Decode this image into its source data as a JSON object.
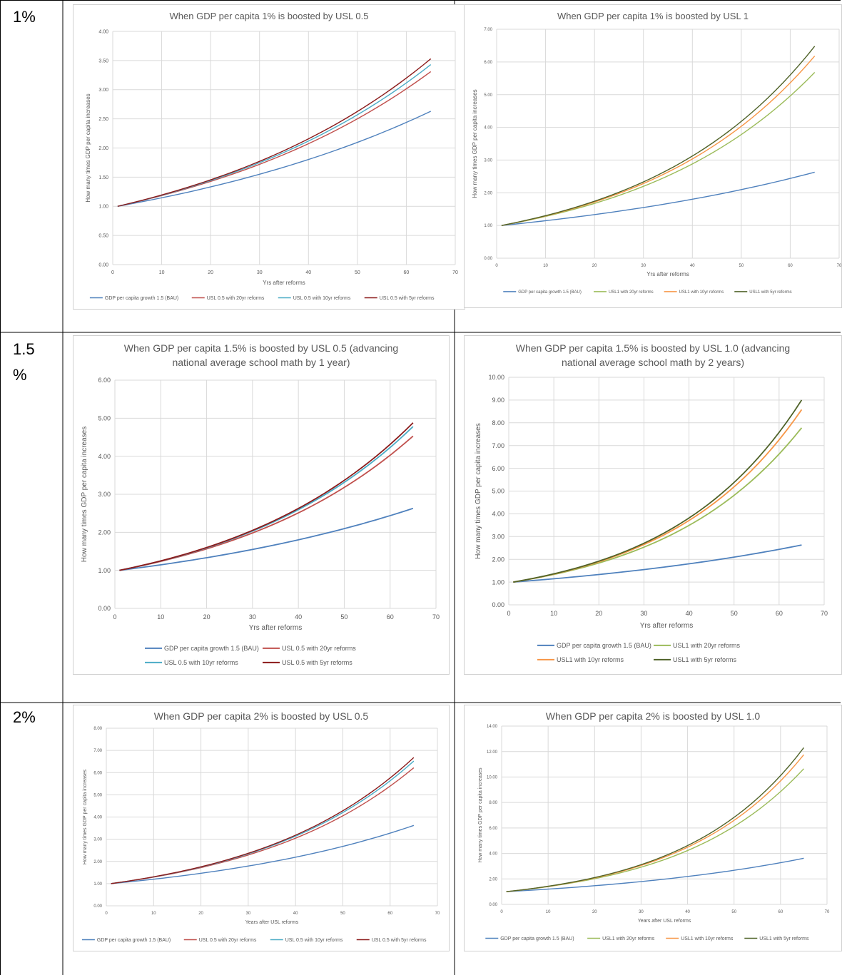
{
  "row_labels": [
    "1%",
    "1.5",
    "%",
    "2%"
  ],
  "colors": {
    "bau": "#4f81bd",
    "usl05_20": "#c0504d",
    "usl05_10": "#4bacc6",
    "usl05_5": "#8b1a1a",
    "usl1_20": "#9bbb59",
    "usl1_10": "#f79646",
    "usl1_5": "#4f6228"
  },
  "chart_data": [
    {
      "type": "line",
      "title": [
        "When GDP per capita 1% is boosted by USL 0.5"
      ],
      "xlabel": "Yrs after reforms",
      "ylabel": "How many times GDP per capita increases",
      "xlim": [
        0,
        70
      ],
      "ylim": [
        0,
        4
      ],
      "xticks": [
        "0",
        "10",
        "20",
        "30",
        "40",
        "50",
        "60",
        "70"
      ],
      "yticks": [
        "0.00",
        "0.50",
        "1.00",
        "1.50",
        "2.00",
        "2.50",
        "3.00",
        "3.50",
        "4.00"
      ],
      "legend_position": "bottom",
      "x": [
        1,
        65
      ],
      "series": [
        {
          "name": "GDP per capita growth 1.5 (BAU)",
          "values": [
            1.0,
            2.63
          ]
        },
        {
          "name": "USL 0.5 with 20yr reforms",
          "values": [
            1.0,
            3.31
          ]
        },
        {
          "name": "USL 0.5 with 10yr reforms",
          "values": [
            1.0,
            3.43
          ]
        },
        {
          "name": "USL 0.5 with 5yr reforms",
          "values": [
            1.0,
            3.53
          ]
        }
      ]
    },
    {
      "type": "line",
      "title": [
        "When GDP per capita 1% is boosted by USL 1"
      ],
      "xlabel": "Yrs after reforms",
      "ylabel": "How many times GDP per capita increases",
      "xlim": [
        0,
        70
      ],
      "ylim": [
        0,
        7
      ],
      "xticks": [
        "0",
        "10",
        "20",
        "30",
        "40",
        "50",
        "60",
        "70"
      ],
      "yticks": [
        "0.00",
        "1.00",
        "2.00",
        "3.00",
        "4.00",
        "5.00",
        "6.00",
        "7.00"
      ],
      "legend_position": "bottom",
      "x": [
        1,
        65
      ],
      "series": [
        {
          "name": "GDP per capita growth 1.5 (BAU)",
          "values": [
            1.0,
            2.63
          ]
        },
        {
          "name": "USL1 with 20yr reforms",
          "values": [
            1.0,
            5.68
          ]
        },
        {
          "name": "USL1 with 10yr reforms",
          "values": [
            1.0,
            6.18
          ]
        },
        {
          "name": "USL1 with 5yr reforms",
          "values": [
            1.0,
            6.48
          ]
        }
      ]
    },
    {
      "type": "line",
      "title": [
        "When GDP per capita 1.5% is boosted by USL 0.5 (advancing",
        "national average school math by 1 year)"
      ],
      "xlabel": "Yrs after  reforms",
      "ylabel": "How many times GDP per capita increases",
      "xlim": [
        0,
        70
      ],
      "ylim": [
        0,
        6
      ],
      "xticks": [
        "0",
        "10",
        "20",
        "30",
        "40",
        "50",
        "60",
        "70"
      ],
      "yticks": [
        "0.00",
        "1.00",
        "2.00",
        "3.00",
        "4.00",
        "5.00",
        "6.00"
      ],
      "legend_position": "bottom",
      "x": [
        1,
        65
      ],
      "series": [
        {
          "name": "GDP per capita growth 1.5 (BAU)",
          "values": [
            1.0,
            2.63
          ]
        },
        {
          "name": "USL 0.5 with 20yr reforms",
          "values": [
            1.0,
            4.53
          ]
        },
        {
          "name": "USL 0.5 with 10yr reforms",
          "values": [
            1.0,
            4.78
          ]
        },
        {
          "name": "USL 0.5 with 5yr reforms",
          "values": [
            1.0,
            4.88
          ]
        }
      ]
    },
    {
      "type": "line",
      "title": [
        "When GDP per capita 1.5% is boosted by USL 1.0 (advancing",
        "national average school math by 2 years)"
      ],
      "xlabel": "Yrs after  reforms",
      "ylabel": "How many times GDP per capita increases",
      "xlim": [
        0,
        70
      ],
      "ylim": [
        0,
        10
      ],
      "xticks": [
        "0",
        "10",
        "20",
        "30",
        "40",
        "50",
        "60",
        "70"
      ],
      "yticks": [
        "0.00",
        "1.00",
        "2.00",
        "3.00",
        "4.00",
        "5.00",
        "6.00",
        "7.00",
        "8.00",
        "9.00",
        "10.00"
      ],
      "legend_position": "bottom",
      "x": [
        1,
        65
      ],
      "series": [
        {
          "name": "GDP per capita growth 1.5 (BAU)",
          "values": [
            1.0,
            2.63
          ]
        },
        {
          "name": "USL1 with 20yr reforms",
          "values": [
            1.0,
            7.78
          ]
        },
        {
          "name": "USL1 with 10yr reforms",
          "values": [
            1.0,
            8.58
          ]
        },
        {
          "name": "USL1 with 5yr reforms",
          "values": [
            1.0,
            9.0
          ]
        }
      ]
    },
    {
      "type": "line",
      "title": [
        "When GDP per capita 2% is boosted by USL 0.5"
      ],
      "xlabel": "Years after USL reforms",
      "ylabel": "How many times GDP per capita increases",
      "xlim": [
        0,
        70
      ],
      "ylim": [
        0,
        8
      ],
      "xticks": [
        "0",
        "10",
        "20",
        "30",
        "40",
        "50",
        "60",
        "70"
      ],
      "yticks": [
        "0.00",
        "1.00",
        "2.00",
        "3.00",
        "4.00",
        "5.00",
        "6.00",
        "7.00",
        "8.00"
      ],
      "legend_position": "bottom",
      "x": [
        1,
        65
      ],
      "series": [
        {
          "name": "GDP per capita growth 1.5 (BAU)",
          "values": [
            1.0,
            3.62
          ]
        },
        {
          "name": "USL 0.5 with 20yr reforms",
          "values": [
            1.0,
            6.22
          ]
        },
        {
          "name": "USL 0.5 with 10yr reforms",
          "values": [
            1.0,
            6.52
          ]
        },
        {
          "name": "USL 0.5 with 5yr reforms",
          "values": [
            1.0,
            6.68
          ]
        }
      ]
    },
    {
      "type": "line",
      "title": [
        "When GDP per capita 2% is boosted by USL 1.0"
      ],
      "xlabel": "Years after USL reforms",
      "ylabel": "How many times GDP per capita increases",
      "xlim": [
        0,
        70
      ],
      "ylim": [
        0,
        14
      ],
      "xticks": [
        "0",
        "10",
        "20",
        "30",
        "40",
        "50",
        "60",
        "70"
      ],
      "yticks": [
        "0.00",
        "2.00",
        "4.00",
        "6.00",
        "8.00",
        "10.00",
        "12.00",
        "14.00"
      ],
      "legend_position": "bottom",
      "x": [
        1,
        65
      ],
      "series": [
        {
          "name": "GDP per capita growth 1.5 (BAU)",
          "values": [
            1.0,
            3.62
          ]
        },
        {
          "name": "USL1 with 20yr reforms",
          "values": [
            1.0,
            10.65
          ]
        },
        {
          "name": "USL1 with 10yr reforms",
          "values": [
            1.0,
            11.75
          ]
        },
        {
          "name": "USL1 with 5yr reforms",
          "values": [
            1.0,
            12.3
          ]
        }
      ]
    }
  ]
}
